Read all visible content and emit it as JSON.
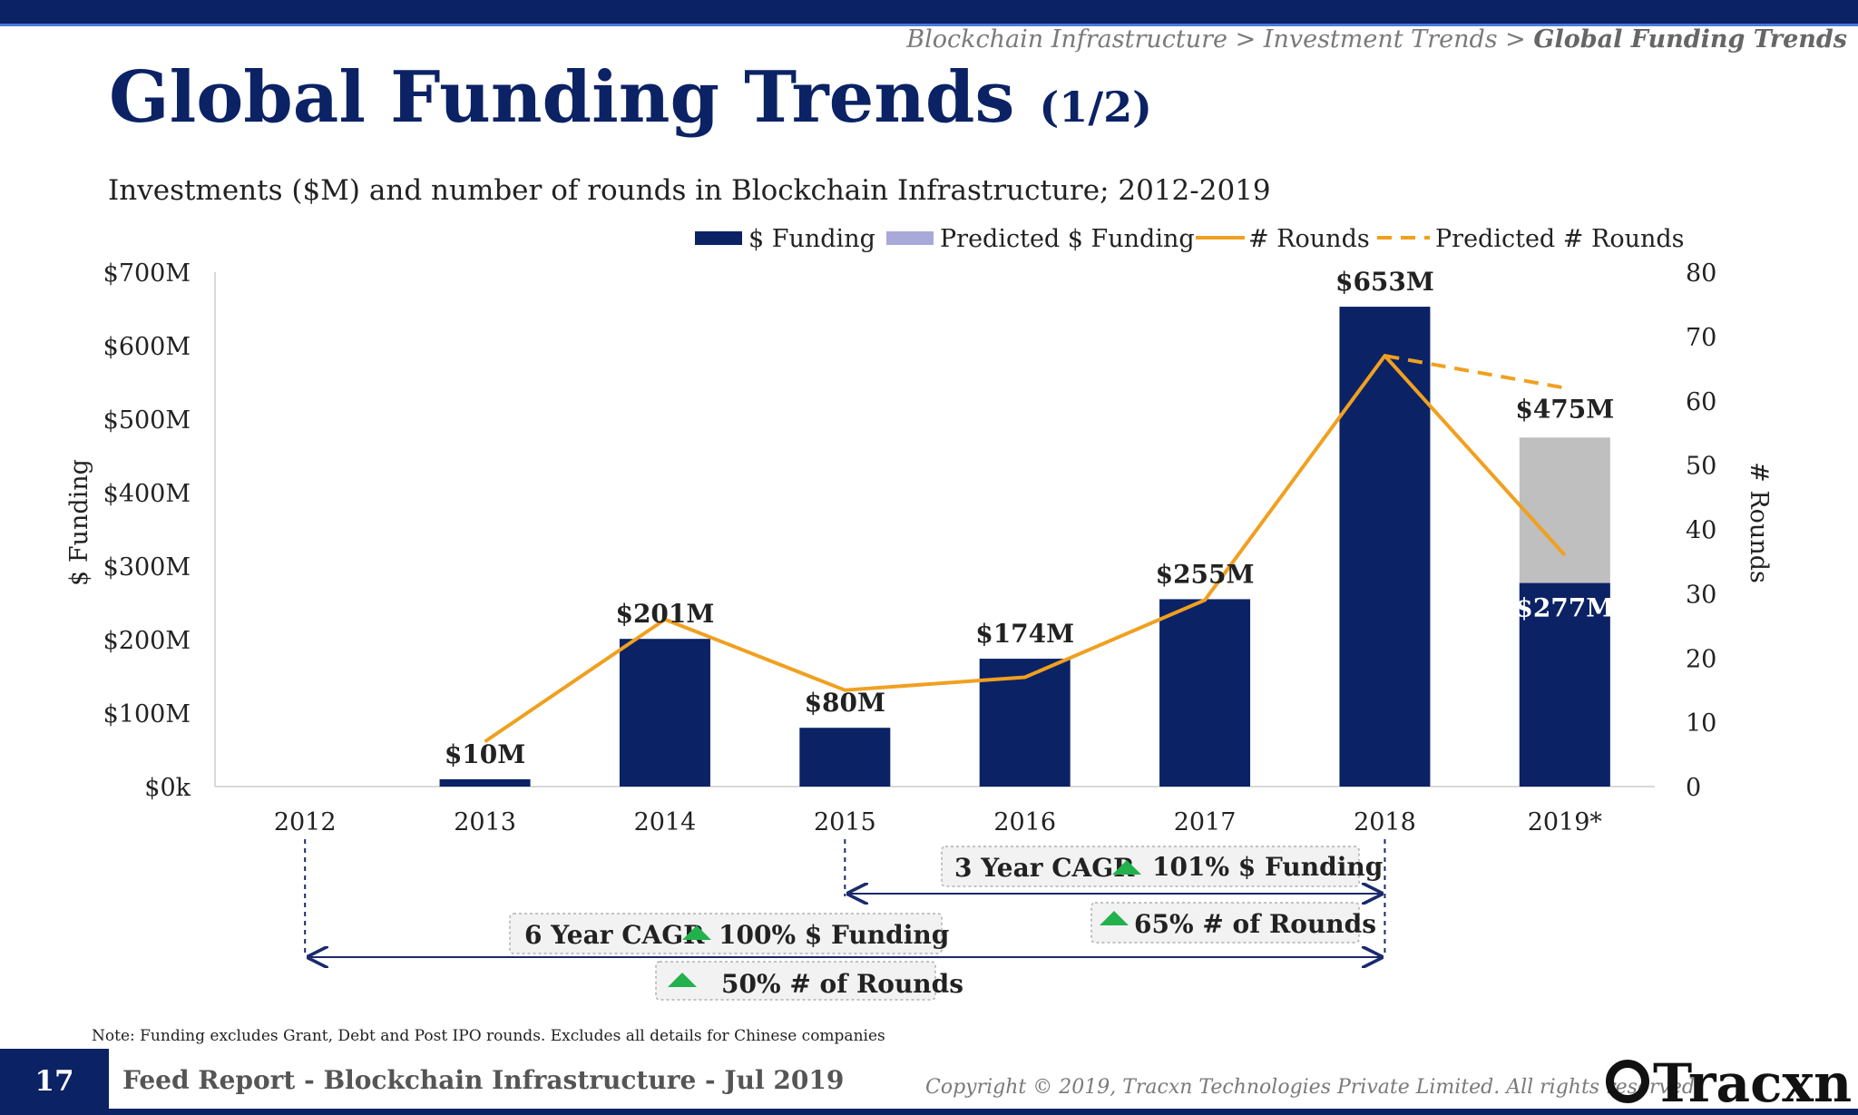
{
  "breadcrumb": {
    "part1": "Blockchain Infrastructure > Investment Trends > ",
    "part2": "Global Funding Trends"
  },
  "title": {
    "main": "Global Funding Trends",
    "suffix": "(1/2)"
  },
  "subtitle": "Investments ($M) and number of rounds in Blockchain Infrastructure; 2012-2019",
  "chart_data": {
    "type": "bar",
    "categories": [
      "2012",
      "2013",
      "2014",
      "2015",
      "2016",
      "2017",
      "2018",
      "2019*"
    ],
    "series": [
      {
        "name": "$ Funding",
        "type": "bar",
        "values": [
          0,
          10,
          201,
          80,
          174,
          255,
          653,
          277
        ],
        "color": "#0b2265"
      },
      {
        "name": "Predicted $ Funding",
        "type": "bar",
        "values": [
          null,
          null,
          null,
          null,
          null,
          null,
          null,
          475
        ],
        "color": "#bfbfbf",
        "legend_color": "#a9a9d9"
      },
      {
        "name": "# Rounds",
        "type": "line",
        "axis": "right",
        "values": [
          null,
          7,
          26,
          15,
          17,
          29,
          67,
          36
        ],
        "color": "#f0a020"
      },
      {
        "name": "Predicted # Rounds",
        "type": "line",
        "axis": "right",
        "dashed": true,
        "values": [
          null,
          null,
          null,
          null,
          null,
          null,
          67,
          62
        ],
        "color": "#f0a020"
      }
    ],
    "bar_labels": [
      "",
      "$10M",
      "$201M",
      "$80M",
      "$174M",
      "$255M",
      "$653M",
      "$277M"
    ],
    "predicted_label": "$475M",
    "ylabel": "$ Funding",
    "y2label": "# Rounds",
    "ylim": [
      0,
      700
    ],
    "y2lim": [
      0,
      80
    ],
    "y_ticks": [
      "$0k",
      "$100M",
      "$200M",
      "$300M",
      "$400M",
      "$500M",
      "$600M",
      "$700M"
    ],
    "y2_ticks": [
      "0",
      "10",
      "20",
      "30",
      "40",
      "50",
      "60",
      "70",
      "80"
    ],
    "legend_position": "top",
    "grid": false
  },
  "annotations": {
    "cagr3": {
      "prefix": "3 Year CAGR",
      "funding": "101% $ Funding",
      "rounds": "65% # of Rounds",
      "from": "2015",
      "to": "2018"
    },
    "cagr6": {
      "prefix": "6 Year CAGR",
      "funding": "100% $ Funding",
      "rounds": "50% # of Rounds",
      "from": "2012",
      "to": "2018"
    },
    "up_color": "#22b14c"
  },
  "note": "Note: Funding excludes Grant, Debt and Post IPO rounds. Excludes all details for Chinese companies",
  "footer": {
    "page": "17",
    "report": "Feed Report - Blockchain Infrastructure - Jul 2019",
    "copyright": "Copyright © 2019, Tracxn Technologies Private Limited. All rights reserved.",
    "logo": "Tracxn"
  }
}
